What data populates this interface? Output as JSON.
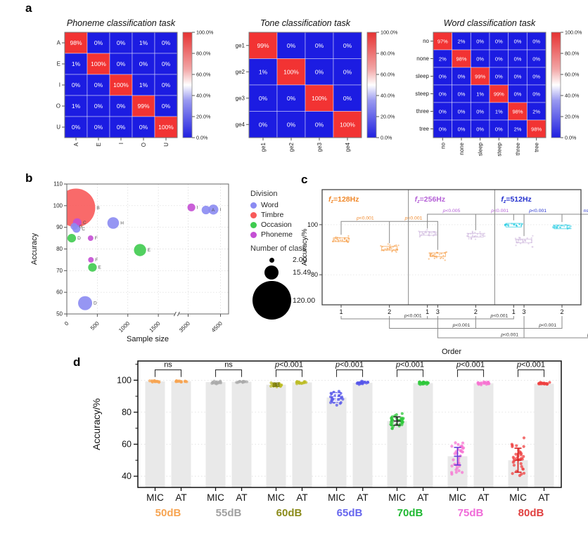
{
  "panels": {
    "a": "a",
    "b": "b",
    "c": "c",
    "d": "d"
  },
  "chart_data": [
    {
      "id": "heatmap-phoneme",
      "type": "heatmap",
      "title": "Phoneme classification task",
      "labels": [
        "A",
        "E",
        "I",
        "O",
        "U"
      ],
      "matrix": [
        [
          98,
          0,
          0,
          1,
          0
        ],
        [
          1,
          100,
          0,
          0,
          0
        ],
        [
          0,
          0,
          100,
          1,
          0
        ],
        [
          1,
          0,
          0,
          99,
          0
        ],
        [
          0,
          0,
          0,
          0,
          100
        ]
      ],
      "colorbar_ticks": [
        "100.0%",
        "80.0%",
        "60.0%",
        "40.0%",
        "20.0%",
        "0.0%"
      ],
      "colors": {
        "high": "#F23333",
        "low": "#1C1CE2"
      }
    },
    {
      "id": "heatmap-tone",
      "type": "heatmap",
      "title": "Tone classification task",
      "labels": [
        "ge1",
        "ge2",
        "ge3",
        "ge4"
      ],
      "matrix": [
        [
          99,
          0,
          0,
          0
        ],
        [
          1,
          100,
          0,
          0
        ],
        [
          0,
          0,
          100,
          0
        ],
        [
          0,
          0,
          0,
          100
        ]
      ],
      "colorbar_ticks": [
        "100.0%",
        "80.0%",
        "60.0%",
        "40.0%",
        "20.0%",
        "0.0%"
      ],
      "colors": {
        "high": "#F23333",
        "low": "#1C1CE2"
      }
    },
    {
      "id": "heatmap-word",
      "type": "heatmap",
      "title": "Word classification task",
      "labels": [
        "no",
        "none",
        "sleep",
        "steep",
        "three",
        "tree"
      ],
      "matrix": [
        [
          97,
          2,
          0,
          0,
          0,
          0
        ],
        [
          2,
          98,
          0,
          0,
          0,
          0
        ],
        [
          0,
          0,
          99,
          0,
          0,
          0
        ],
        [
          0,
          0,
          1,
          99,
          0,
          0
        ],
        [
          0,
          0,
          0,
          1,
          98,
          2
        ],
        [
          0,
          0,
          0,
          0,
          2,
          98
        ]
      ],
      "colorbar_ticks": [
        "100.0%",
        "80.0%",
        "60.0%",
        "40.0%",
        "20.0%",
        "0.0%"
      ],
      "colors": {
        "high": "#F23333",
        "low": "#1C1CE2"
      }
    },
    {
      "id": "bubble",
      "type": "scatter",
      "xlabel": "Sample size",
      "ylabel": "Accuracy",
      "ylim": [
        50,
        110
      ],
      "yticks": [
        50,
        60,
        70,
        80,
        90,
        100,
        110
      ],
      "xticks": [
        0,
        500,
        1000,
        1500,
        3500,
        4500
      ],
      "axis_break": [
        1750,
        3250
      ],
      "division_colors": {
        "Word": "#8B8BF2",
        "Timbre": "#F85A5A",
        "Occasion": "#3FCB4F",
        "Phoneme": "#C44FD4"
      },
      "legend": {
        "title": "Division",
        "items": [
          "Word",
          "Timbre",
          "Occasion",
          "Phoneme"
        ],
        "size_title": "Number of class",
        "sizes": [
          {
            "value": "2.00",
            "n": 2
          },
          {
            "value": "15.49",
            "n": 15.49
          },
          {
            "value": "120.00",
            "n": 120
          }
        ]
      },
      "points": [
        {
          "label": "B",
          "division": "Timbre",
          "x": 150,
          "y": 99,
          "n": 120
        },
        {
          "label": "C",
          "division": "Phoneme",
          "x": 170,
          "y": 92.2,
          "n": 6
        },
        {
          "label": "G",
          "division": "Word",
          "x": 120,
          "y": 90.4,
          "n": 4
        },
        {
          "label": "C",
          "division": "Word",
          "x": 158,
          "y": 89.3,
          "n": 5
        },
        {
          "label": "D",
          "division": "Occasion",
          "x": 80,
          "y": 85,
          "n": 6
        },
        {
          "label": "F",
          "division": "Phoneme",
          "x": 390,
          "y": 85,
          "n": 2.5
        },
        {
          "label": "H",
          "division": "Word",
          "x": 760,
          "y": 92,
          "n": 11
        },
        {
          "label": "E",
          "division": "Occasion",
          "x": 1200,
          "y": 79.5,
          "n": 12
        },
        {
          "label": "F",
          "division": "Phoneme",
          "x": 395,
          "y": 75,
          "n": 2.5
        },
        {
          "label": "E",
          "division": "Occasion",
          "x": 420,
          "y": 71.5,
          "n": 6
        },
        {
          "label": "D",
          "division": "Word",
          "x": 300,
          "y": 55,
          "n": 16
        },
        {
          "label": "I",
          "division": "Phoneme",
          "x": 3600,
          "y": 99.2,
          "n": 5
        },
        {
          "label": "A",
          "division": "Word",
          "x": 4050,
          "y": 98,
          "n": 6
        },
        {
          "label": "I",
          "division": "Word",
          "x": 4280,
          "y": 98.2,
          "n": 8
        }
      ]
    },
    {
      "id": "order-strip",
      "type": "strip",
      "ylabel": "Accuracy/%",
      "yticks": [
        100,
        80
      ],
      "ylim": [
        68,
        114
      ],
      "orders": [
        "1",
        "2",
        "3"
      ],
      "xlabel": "Order",
      "panels": [
        {
          "f": "f",
          "sub": "z",
          "rest": "=128Hz",
          "color": "#F0882A",
          "point_color": "#F59B42",
          "means": [
            94,
            90.6,
            88
          ],
          "sds": [
            0.8,
            0.9,
            1.0
          ],
          "bracket_labels": [
            "p<0.001",
            "p<0.001"
          ],
          "bracket_value": 101.3
        },
        {
          "f": "f",
          "sub": "z",
          "rest": "=256Hz",
          "color": "#B45FD6",
          "point_color": "#CDB6DD",
          "means": [
            96.5,
            95.8,
            93.5
          ],
          "sds": [
            0.7,
            0.8,
            1.2
          ],
          "bracket_labels": [
            "p<0.005",
            "p<0.001"
          ],
          "bracket_value": 104.2
        },
        {
          "f": "f",
          "sub": "z",
          "rest": "=512Hz",
          "color": "#2431CE",
          "point_color": "#2BCDE4",
          "means": [
            99.8,
            99.1,
            99.1
          ],
          "sds": [
            0.3,
            0.45,
            0.45
          ],
          "bracket_labels": [
            "p<0.001",
            "ns"
          ],
          "bracket_value": 104.2
        }
      ],
      "cross_brackets": [
        {
          "order": "1",
          "label_left": "p<0.001",
          "label_right": "p<0.001"
        },
        {
          "order": "2",
          "label_left": "p<0.001",
          "label_right": "p<0.001"
        },
        {
          "order": "3",
          "label_left": "p<0.001",
          "label_right": "p<0.001"
        }
      ]
    },
    {
      "id": "db-bars",
      "type": "barscatter",
      "ylabel": "Accuracy/%",
      "yticks": [
        100,
        80,
        60,
        40
      ],
      "minor_ticks": [
        110,
        90,
        70,
        50
      ],
      "mic_label": "MIC",
      "at_label": "AT",
      "bar_color": "#E9E9E9",
      "groups": [
        {
          "db": "50dB",
          "color": "#F7A451",
          "label_color": "#F7A451",
          "sig": "ns",
          "mic": {
            "mean": 99.3,
            "sd": 0.3,
            "n": 16
          },
          "at": {
            "mean": 99.4,
            "sd": 0.25,
            "n": 16
          }
        },
        {
          "db": "55dB",
          "color": "#ABABAB",
          "label_color": "#A0A0A0",
          "sig": "ns",
          "mic": {
            "mean": 98.8,
            "sd": 0.5,
            "n": 18
          },
          "at": {
            "mean": 99.0,
            "sd": 0.35,
            "n": 16
          }
        },
        {
          "db": "60dB",
          "color": "#BCBC25",
          "label_color": "#8B8B1A",
          "sig": "p<0.001",
          "mic": {
            "mean": 97.2,
            "sd": 1.0,
            "n": 20,
            "err": true,
            "err_color": "#74740A"
          },
          "at": {
            "mean": 98.6,
            "sd": 0.4,
            "n": 18
          }
        },
        {
          "db": "65dB",
          "color": "#5656EA",
          "label_color": "#6666EE",
          "sig": "p<0.001",
          "mic": {
            "mean": 89.2,
            "sd": 2.4,
            "n": 36,
            "err": true,
            "err_color": "#FFFFFF"
          },
          "at": {
            "mean": 98.4,
            "sd": 0.5,
            "n": 22
          }
        },
        {
          "db": "70dB",
          "color": "#2EC83A",
          "label_color": "#1FB832",
          "sig": "p<0.001",
          "mic": {
            "mean": 74.5,
            "sd": 2.6,
            "n": 36,
            "err": true,
            "err_color": "#222222"
          },
          "at": {
            "mean": 98.2,
            "sd": 0.5,
            "n": 22
          }
        },
        {
          "db": "75dB",
          "color": "#F773D2",
          "label_color": "#F06AD8",
          "sig": "p<0.001",
          "mic": {
            "mean": 52.5,
            "sd": 5.5,
            "n": 34,
            "err": true,
            "err_color": "#6A3AD8"
          },
          "at": {
            "mean": 98.1,
            "sd": 0.5,
            "n": 22
          }
        },
        {
          "db": "80dB",
          "color": "#EF4040",
          "label_color": "#E04040",
          "sig": "p<0.001",
          "mic": {
            "mean": 50.0,
            "sd": 7.5,
            "n": 34,
            "err": true,
            "err_color": "#D81F1F"
          },
          "at": {
            "mean": 97.8,
            "sd": 0.5,
            "n": 22
          }
        }
      ]
    }
  ]
}
